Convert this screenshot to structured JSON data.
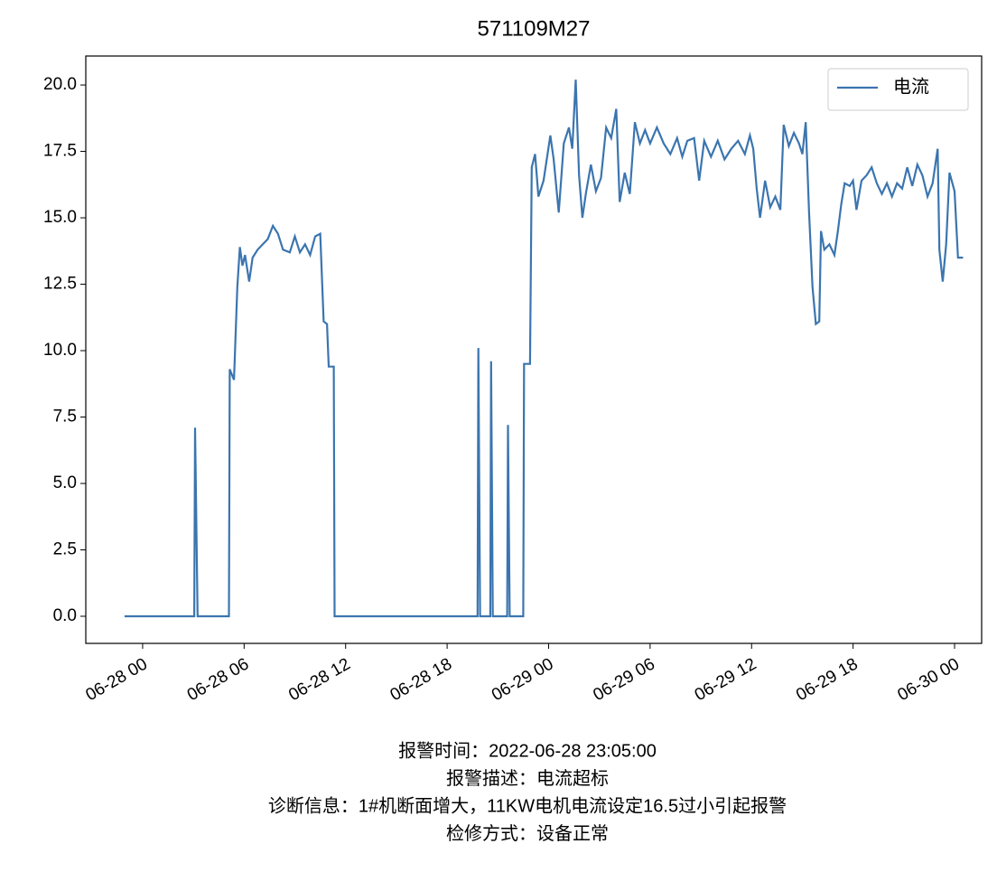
{
  "chart_data": {
    "type": "line",
    "title": "571109M27",
    "x": [
      -1.07,
      3.05,
      3.1,
      3.25,
      5.1,
      5.15,
      5.4,
      5.6,
      5.75,
      5.9,
      6.05,
      6.3,
      6.5,
      6.8,
      7.1,
      7.4,
      7.7,
      8.0,
      8.3,
      8.7,
      9.0,
      9.3,
      9.6,
      9.9,
      10.2,
      10.5,
      10.7,
      10.9,
      11.0,
      11.3,
      11.35,
      19.8,
      19.85,
      19.95,
      20.55,
      20.6,
      20.7,
      21.55,
      21.6,
      21.7,
      22.5,
      22.55,
      22.9,
      23.0,
      23.2,
      23.4,
      23.7,
      24.1,
      24.3,
      24.6,
      24.9,
      25.2,
      25.4,
      25.6,
      25.8,
      26.0,
      26.2,
      26.5,
      26.8,
      27.1,
      27.4,
      27.7,
      28.0,
      28.2,
      28.5,
      28.8,
      29.1,
      29.4,
      29.7,
      30.0,
      30.4,
      30.8,
      31.2,
      31.6,
      31.9,
      32.2,
      32.6,
      32.9,
      33.2,
      33.6,
      34.0,
      34.4,
      34.8,
      35.2,
      35.6,
      35.9,
      36.1,
      36.3,
      36.5,
      36.8,
      37.1,
      37.4,
      37.7,
      37.9,
      38.2,
      38.5,
      38.8,
      39.0,
      39.2,
      39.4,
      39.6,
      39.8,
      40.0,
      40.1,
      40.3,
      40.6,
      40.9,
      41.1,
      41.3,
      41.5,
      41.8,
      42.0,
      42.2,
      42.5,
      42.8,
      43.1,
      43.4,
      43.7,
      44.0,
      44.3,
      44.6,
      44.9,
      45.2,
      45.5,
      45.8,
      46.1,
      46.4,
      46.7,
      47.0,
      47.1,
      47.3,
      47.5,
      47.7,
      48.0,
      48.2,
      48.5
    ],
    "series": [
      {
        "name": "电流",
        "color": "#3b75af",
        "values": [
          0,
          0,
          7.1,
          0,
          0,
          9.3,
          8.9,
          12.4,
          13.9,
          13.2,
          13.6,
          12.6,
          13.5,
          13.8,
          14.0,
          14.2,
          14.7,
          14.4,
          13.8,
          13.7,
          14.3,
          13.7,
          14.0,
          13.6,
          14.3,
          14.4,
          11.1,
          11.0,
          9.4,
          9.4,
          0,
          0,
          10.1,
          0,
          0,
          9.6,
          0,
          0,
          7.2,
          0,
          0,
          9.5,
          9.5,
          16.9,
          17.4,
          15.8,
          16.4,
          18.1,
          17.2,
          15.2,
          17.8,
          18.4,
          17.6,
          20.2,
          16.6,
          15.0,
          15.9,
          17.0,
          16.0,
          16.5,
          18.4,
          18.0,
          19.1,
          15.6,
          16.7,
          15.9,
          18.6,
          17.8,
          18.3,
          17.8,
          18.4,
          17.8,
          17.4,
          18.0,
          17.3,
          17.9,
          18.0,
          16.4,
          17.9,
          17.3,
          17.9,
          17.2,
          17.6,
          17.9,
          17.4,
          18.1,
          17.6,
          16.1,
          15.0,
          16.4,
          15.4,
          15.8,
          15.3,
          18.5,
          17.7,
          18.2,
          17.8,
          17.4,
          18.6,
          15.2,
          12.4,
          11.0,
          11.1,
          14.5,
          13.8,
          14.0,
          13.6,
          14.5,
          15.5,
          16.3,
          16.2,
          16.4,
          15.3,
          16.4,
          16.6,
          16.9,
          16.3,
          15.9,
          16.3,
          15.8,
          16.3,
          16.1,
          16.9,
          16.2,
          17.0,
          16.6,
          15.8,
          16.3,
          17.6,
          13.8,
          12.6,
          14.0,
          16.7,
          16.0,
          13.5,
          13.5
        ]
      }
    ],
    "xlim": [
      -3.36,
      49.6
    ],
    "xticks": [
      {
        "value": 0,
        "label": "06-28 00"
      },
      {
        "value": 6,
        "label": "06-28 06"
      },
      {
        "value": 12,
        "label": "06-28 12"
      },
      {
        "value": 18,
        "label": "06-28 18"
      },
      {
        "value": 24,
        "label": "06-29 00"
      },
      {
        "value": 30,
        "label": "06-29 06"
      },
      {
        "value": 36,
        "label": "06-29 12"
      },
      {
        "value": 42,
        "label": "06-29 18"
      },
      {
        "value": 48,
        "label": "06-30 00"
      }
    ],
    "ylim": [
      -1.02,
      21.09
    ],
    "yticks": [
      {
        "value": 0,
        "label": "0.0"
      },
      2.5,
      {
        "value": 5,
        "label": "5.0"
      },
      7.5,
      {
        "value": 10,
        "label": "10.0"
      },
      12.5,
      {
        "value": 15,
        "label": "15.0"
      },
      17.5,
      {
        "value": 20,
        "label": "20.0"
      }
    ],
    "legend": "upper right",
    "annotations": [
      "报警时间：2022-06-28 23:05:00",
      "报警描述：电流超标",
      "诊断信息：1#机断面增大，11KW电机电流设定16.5过小引起报警",
      "检修方式：设备正常"
    ]
  }
}
